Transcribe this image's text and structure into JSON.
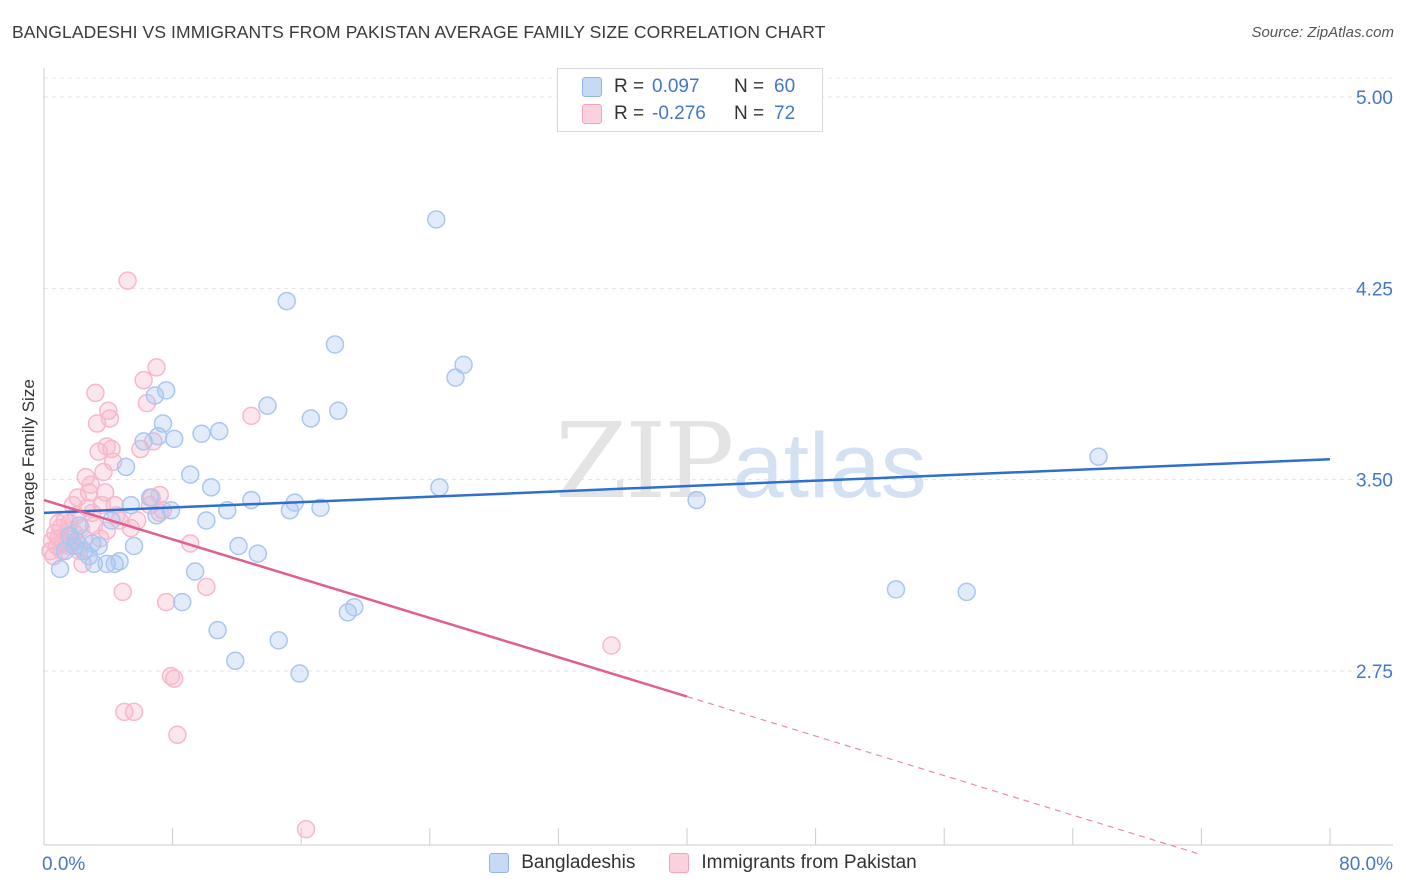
{
  "title": "BANGLADESHI VS IMMIGRANTS FROM PAKISTAN AVERAGE FAMILY SIZE CORRELATION CHART",
  "source": "Source: ZipAtlas.com",
  "watermark": {
    "zip": "ZIP",
    "atlas": "atlas"
  },
  "legend": {
    "rows": [
      {
        "r_label": "R =",
        "r_value": "0.097",
        "n_label": "N =",
        "n_value": "60",
        "color": "#8fb5ea"
      },
      {
        "r_label": "R =",
        "r_value": "-0.276",
        "n_label": "N =",
        "n_value": "72",
        "color": "#f4a3bd"
      }
    ]
  },
  "bottom_legend": [
    "Bangladeshis",
    "Immigrants from Pakistan"
  ],
  "chart_data": {
    "type": "scatter",
    "title": "BANGLADESHI VS IMMIGRANTS FROM PAKISTAN AVERAGE FAMILY SIZE CORRELATION CHART",
    "xlabel": "",
    "ylabel": "Average Family Size",
    "xlim": [
      0,
      80
    ],
    "ylim": [
      2.0,
      5.1
    ],
    "x_tick_labels": [
      "0.0%",
      "80.0%"
    ],
    "y_ticks": [
      2.75,
      3.5,
      4.25,
      5.0
    ],
    "y_tick_labels": [
      "2.75",
      "3.50",
      "4.25",
      "5.00"
    ],
    "series": [
      {
        "name": "Bangladeshis",
        "color": "#5b8fd9",
        "fill": "#aac7f0",
        "trend": {
          "x": [
            0,
            80
          ],
          "y": [
            3.37,
            3.58
          ],
          "dashed_from": null
        },
        "points": [
          [
            1.0,
            3.15
          ],
          [
            1.3,
            3.22
          ],
          [
            1.6,
            3.28
          ],
          [
            1.9,
            3.24
          ],
          [
            2.2,
            3.32
          ],
          [
            2.5,
            3.22
          ],
          [
            2.8,
            3.2
          ],
          [
            3.1,
            3.17
          ],
          [
            3.4,
            3.24
          ],
          [
            3.9,
            3.17
          ],
          [
            4.2,
            3.34
          ],
          [
            4.4,
            3.17
          ],
          [
            4.7,
            3.18
          ],
          [
            5.1,
            3.55
          ],
          [
            5.6,
            3.24
          ],
          [
            6.2,
            3.65
          ],
          [
            6.6,
            3.43
          ],
          [
            6.9,
            3.83
          ],
          [
            7.1,
            3.67
          ],
          [
            7.4,
            3.72
          ],
          [
            7.6,
            3.85
          ],
          [
            7.9,
            3.38
          ],
          [
            8.1,
            3.66
          ],
          [
            8.6,
            3.02
          ],
          [
            9.1,
            3.52
          ],
          [
            9.4,
            3.14
          ],
          [
            9.8,
            3.68
          ],
          [
            10.1,
            3.34
          ],
          [
            10.4,
            3.47
          ],
          [
            10.8,
            2.91
          ],
          [
            10.9,
            3.69
          ],
          [
            11.4,
            3.38
          ],
          [
            11.9,
            2.79
          ],
          [
            12.1,
            3.24
          ],
          [
            12.9,
            3.42
          ],
          [
            13.3,
            3.21
          ],
          [
            13.9,
            3.79
          ],
          [
            14.6,
            2.87
          ],
          [
            15.1,
            4.2
          ],
          [
            15.3,
            3.38
          ],
          [
            15.6,
            3.41
          ],
          [
            15.9,
            2.74
          ],
          [
            16.6,
            3.74
          ],
          [
            17.2,
            3.39
          ],
          [
            18.1,
            4.03
          ],
          [
            18.3,
            3.77
          ],
          [
            18.9,
            2.98
          ],
          [
            19.3,
            3.0
          ],
          [
            24.4,
            4.52
          ],
          [
            24.6,
            3.47
          ],
          [
            25.6,
            3.9
          ],
          [
            26.1,
            3.95
          ],
          [
            40.6,
            3.42
          ],
          [
            53.0,
            3.07
          ],
          [
            57.4,
            3.06
          ],
          [
            65.6,
            3.59
          ],
          [
            2.0,
            3.26
          ],
          [
            3.0,
            3.25
          ],
          [
            5.4,
            3.4
          ],
          [
            7.0,
            3.36
          ]
        ]
      },
      {
        "name": "Immigrants from Pakistan",
        "color": "#e86d96",
        "fill": "#f7b8cb",
        "trend": {
          "x": [
            0,
            40
          ],
          "y": [
            3.42,
            2.65
          ],
          "dashed_to": {
            "x": 72,
            "y": 2.03
          }
        },
        "points": [
          [
            0.4,
            3.22
          ],
          [
            0.5,
            3.26
          ],
          [
            0.6,
            3.2
          ],
          [
            0.7,
            3.29
          ],
          [
            0.8,
            3.24
          ],
          [
            0.9,
            3.27
          ],
          [
            1.0,
            3.31
          ],
          [
            1.1,
            3.22
          ],
          [
            1.2,
            3.26
          ],
          [
            1.3,
            3.34
          ],
          [
            1.4,
            3.25
          ],
          [
            1.5,
            3.3
          ],
          [
            1.6,
            3.33
          ],
          [
            1.7,
            3.25
          ],
          [
            1.8,
            3.4
          ],
          [
            1.9,
            3.29
          ],
          [
            2.0,
            3.36
          ],
          [
            2.1,
            3.43
          ],
          [
            2.2,
            3.22
          ],
          [
            2.3,
            3.31
          ],
          [
            2.4,
            3.17
          ],
          [
            2.5,
            3.27
          ],
          [
            2.6,
            3.51
          ],
          [
            2.7,
            3.39
          ],
          [
            2.8,
            3.45
          ],
          [
            2.9,
            3.48
          ],
          [
            3.0,
            3.37
          ],
          [
            3.1,
            3.32
          ],
          [
            3.2,
            3.84
          ],
          [
            3.3,
            3.72
          ],
          [
            3.4,
            3.61
          ],
          [
            3.5,
            3.27
          ],
          [
            3.6,
            3.4
          ],
          [
            3.7,
            3.53
          ],
          [
            3.8,
            3.45
          ],
          [
            3.9,
            3.63
          ],
          [
            4.0,
            3.77
          ],
          [
            4.1,
            3.74
          ],
          [
            4.2,
            3.62
          ],
          [
            4.3,
            3.57
          ],
          [
            4.4,
            3.4
          ],
          [
            4.5,
            3.36
          ],
          [
            4.7,
            3.34
          ],
          [
            4.9,
            3.06
          ],
          [
            5.0,
            2.59
          ],
          [
            5.2,
            4.28
          ],
          [
            5.4,
            3.31
          ],
          [
            5.6,
            2.59
          ],
          [
            5.8,
            3.34
          ],
          [
            6.0,
            3.62
          ],
          [
            6.2,
            3.89
          ],
          [
            6.4,
            3.8
          ],
          [
            6.6,
            3.4
          ],
          [
            6.8,
            3.65
          ],
          [
            7.0,
            3.94
          ],
          [
            7.2,
            3.44
          ],
          [
            7.4,
            3.38
          ],
          [
            7.6,
            3.02
          ],
          [
            7.9,
            2.73
          ],
          [
            8.1,
            2.72
          ],
          [
            8.3,
            2.5
          ],
          [
            9.1,
            3.25
          ],
          [
            10.1,
            3.08
          ],
          [
            12.9,
            3.75
          ],
          [
            16.3,
            2.13
          ],
          [
            35.3,
            2.85
          ],
          [
            2.2,
            3.24
          ],
          [
            1.5,
            3.24
          ],
          [
            0.9,
            3.33
          ],
          [
            3.9,
            3.3
          ],
          [
            6.7,
            3.43
          ],
          [
            7.2,
            3.37
          ]
        ]
      }
    ]
  }
}
